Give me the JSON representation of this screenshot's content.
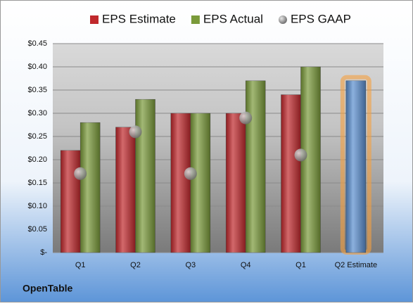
{
  "chart_data": {
    "type": "bar",
    "categories": [
      "Q1",
      "Q2",
      "Q3",
      "Q4",
      "Q1",
      "Q2 Estimate"
    ],
    "series": [
      {
        "name": "EPS Estimate",
        "color": "#c0282c",
        "values": [
          0.22,
          0.27,
          0.3,
          0.3,
          0.34,
          0.37
        ],
        "highlight": {
          "index": 5,
          "color": "#5b8fd0",
          "glow": "#f5a040"
        }
      },
      {
        "name": "EPS Actual",
        "color": "#7a9a3a",
        "values": [
          0.28,
          0.33,
          0.3,
          0.37,
          0.4,
          null
        ]
      },
      {
        "name": "EPS GAAP",
        "type": "scatter",
        "color": "#9a9a9a",
        "values": [
          0.17,
          0.26,
          0.17,
          0.29,
          0.21,
          null
        ]
      }
    ],
    "ylim": [
      0,
      0.45
    ],
    "yticks": [
      {
        "value": 0,
        "label": "$-"
      },
      {
        "value": 0.05,
        "label": "$0.05"
      },
      {
        "value": 0.1,
        "label": "$0.10"
      },
      {
        "value": 0.15,
        "label": "$0.15"
      },
      {
        "value": 0.2,
        "label": "$0.20"
      },
      {
        "value": 0.25,
        "label": "$0.25"
      },
      {
        "value": 0.3,
        "label": "$0.30"
      },
      {
        "value": 0.35,
        "label": "$0.35"
      },
      {
        "value": 0.4,
        "label": "$0.40"
      },
      {
        "value": 0.45,
        "label": "$0.45"
      }
    ],
    "grid": true,
    "legend": "top"
  },
  "footer": "OpenTable"
}
